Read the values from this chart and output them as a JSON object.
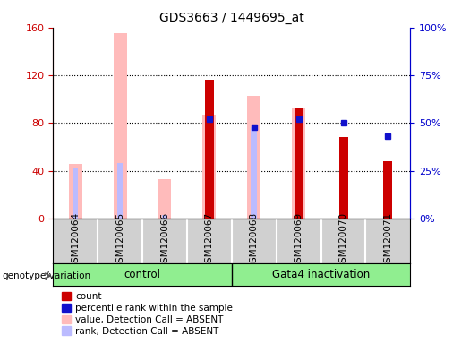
{
  "title": "GDS3663 / 1449695_at",
  "samples": [
    "GSM120064",
    "GSM120065",
    "GSM120066",
    "GSM120067",
    "GSM120068",
    "GSM120069",
    "GSM120070",
    "GSM120071"
  ],
  "count": [
    0,
    0,
    0,
    116,
    0,
    92,
    68,
    48
  ],
  "percentile_rank": [
    null,
    null,
    null,
    52,
    48,
    52,
    50,
    43
  ],
  "value_absent": [
    46,
    155,
    33,
    87,
    103,
    92,
    null,
    null
  ],
  "rank_absent": [
    26,
    29,
    2,
    52,
    48,
    52,
    null,
    null
  ],
  "ylim_left": [
    0,
    160
  ],
  "ylim_right": [
    0,
    100
  ],
  "yticks_left": [
    0,
    40,
    80,
    120,
    160
  ],
  "yticks_right": [
    0,
    25,
    50,
    75,
    100
  ],
  "yticklabels_right": [
    "0%",
    "25%",
    "50%",
    "75%",
    "100%"
  ],
  "group1_label": "control",
  "group2_label": "Gata4 inactivation",
  "group1_indices": [
    0,
    1,
    2,
    3
  ],
  "group2_indices": [
    4,
    5,
    6,
    7
  ],
  "color_count": "#cc0000",
  "color_rank": "#1111cc",
  "color_value_absent": "#ffbbbb",
  "color_rank_absent": "#bbbbff",
  "left_axis_color": "#cc0000",
  "right_axis_color": "#0000cc",
  "grid_color": "#000000",
  "label_bg_color": "#d0d0d0",
  "group_bg": "#90ee90",
  "separator_color": "#888888"
}
